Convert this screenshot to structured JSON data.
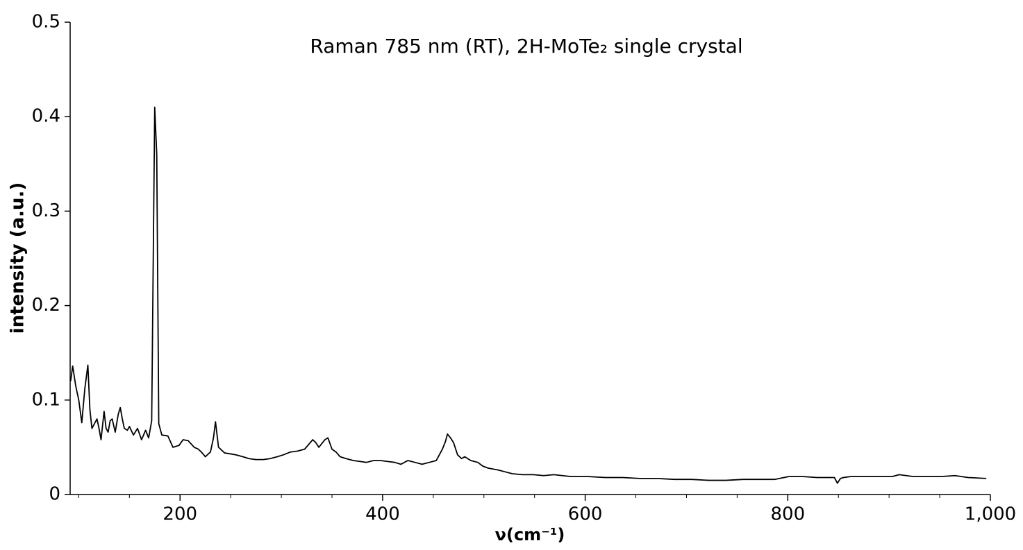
{
  "chart_data": {
    "type": "line",
    "title": "Raman 785 nm (RT), 2H-MoTe₂ single crystal",
    "xlabel": "ν(cm⁻¹)",
    "ylabel": "intensity (a.u.)",
    "color": "#000000",
    "x": [
      92,
      94,
      97,
      100,
      103,
      106,
      109,
      111,
      113,
      116,
      118,
      120,
      122,
      125,
      127,
      129,
      131,
      133,
      136,
      139,
      141,
      143,
      145,
      148,
      150,
      154,
      158,
      162,
      166,
      169,
      172,
      174,
      175,
      177,
      179,
      182,
      188,
      193,
      199,
      203,
      208,
      214,
      218,
      221,
      225,
      230,
      233,
      235,
      238,
      244,
      250,
      255,
      262,
      268,
      275,
      282,
      289,
      296,
      302,
      309,
      316,
      323,
      331,
      334,
      337,
      343,
      346,
      350,
      354,
      358,
      364,
      371,
      378,
      384,
      391,
      398,
      405,
      412,
      418,
      425,
      432,
      439,
      446,
      453,
      459,
      462,
      464,
      467,
      470,
      474,
      478,
      481,
      487,
      494,
      499,
      504,
      509,
      514,
      521,
      528,
      538,
      549,
      559,
      569,
      586,
      603,
      620,
      637,
      654,
      671,
      688,
      705,
      722,
      739,
      756,
      773,
      787,
      801,
      815,
      829,
      842,
      846,
      849,
      852,
      855,
      862,
      876,
      890,
      903,
      910,
      924,
      937,
      951,
      965,
      978,
      996
    ],
    "values": [
      0.12,
      0.136,
      0.115,
      0.1,
      0.076,
      0.112,
      0.137,
      0.09,
      0.07,
      0.076,
      0.08,
      0.07,
      0.058,
      0.088,
      0.07,
      0.066,
      0.078,
      0.08,
      0.066,
      0.085,
      0.092,
      0.08,
      0.07,
      0.068,
      0.072,
      0.063,
      0.07,
      0.058,
      0.068,
      0.06,
      0.078,
      0.3,
      0.41,
      0.36,
      0.075,
      0.063,
      0.062,
      0.05,
      0.052,
      0.058,
      0.057,
      0.05,
      0.048,
      0.045,
      0.04,
      0.045,
      0.06,
      0.077,
      0.05,
      0.044,
      0.043,
      0.042,
      0.04,
      0.038,
      0.037,
      0.037,
      0.038,
      0.04,
      0.042,
      0.045,
      0.046,
      0.048,
      0.058,
      0.055,
      0.05,
      0.058,
      0.06,
      0.048,
      0.045,
      0.04,
      0.038,
      0.036,
      0.035,
      0.034,
      0.036,
      0.036,
      0.035,
      0.034,
      0.032,
      0.036,
      0.034,
      0.032,
      0.034,
      0.036,
      0.048,
      0.056,
      0.064,
      0.06,
      0.055,
      0.042,
      0.038,
      0.04,
      0.036,
      0.034,
      0.03,
      0.028,
      0.027,
      0.026,
      0.024,
      0.022,
      0.021,
      0.021,
      0.02,
      0.021,
      0.019,
      0.019,
      0.018,
      0.018,
      0.017,
      0.017,
      0.016,
      0.016,
      0.015,
      0.015,
      0.016,
      0.016,
      0.016,
      0.019,
      0.019,
      0.018,
      0.018,
      0.018,
      0.012,
      0.017,
      0.018,
      0.019,
      0.019,
      0.019,
      0.019,
      0.021,
      0.019,
      0.019,
      0.019,
      0.02,
      0.018,
      0.017
    ],
    "xlim": [
      91.5,
      1000
    ],
    "ylim": [
      0,
      0.5
    ],
    "xticks": [
      200,
      400,
      600,
      800,
      {
        "value": 1000,
        "label": "1,000"
      }
    ],
    "xminor_ticks": [
      100,
      150,
      250,
      300,
      350,
      450,
      500,
      550,
      650,
      700,
      750,
      850,
      900,
      950
    ],
    "yticks": [
      0,
      0.1,
      0.2,
      0.3,
      0.4,
      0.5
    ]
  }
}
